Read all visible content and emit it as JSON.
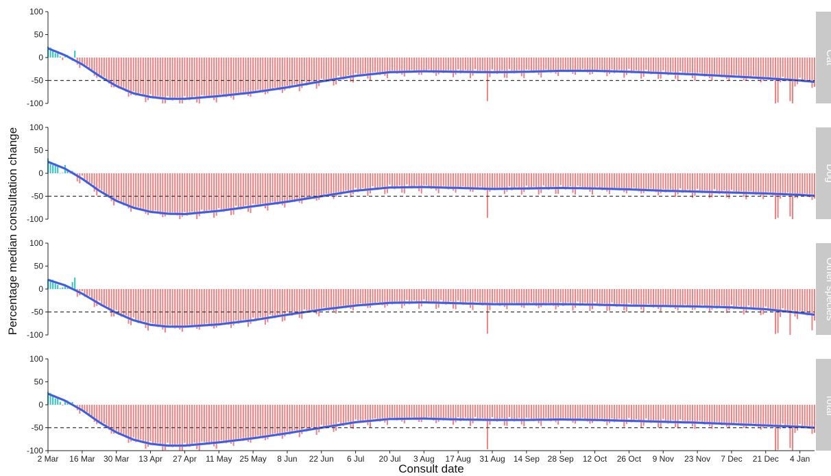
{
  "chart_data": {
    "type": "bar",
    "xlabel": "Consult date",
    "ylabel": "Percentage median consultation change",
    "ylim": [
      -100,
      100
    ],
    "yticks": [
      100,
      50,
      0,
      -50,
      -100
    ],
    "reference_line": -50,
    "date_range": [
      "2020-03-02",
      "2021-01-10"
    ],
    "x_ticks": [
      {
        "date": "2020-03-02",
        "label": "2 Mar"
      },
      {
        "date": "2020-03-16",
        "label": "16 Mar"
      },
      {
        "date": "2020-03-30",
        "label": "30 Mar"
      },
      {
        "date": "2020-04-13",
        "label": "13 Apr"
      },
      {
        "date": "2020-04-27",
        "label": "27 Apr"
      },
      {
        "date": "2020-05-11",
        "label": "11 May"
      },
      {
        "date": "2020-05-25",
        "label": "25 May"
      },
      {
        "date": "2020-06-08",
        "label": "8 Jun"
      },
      {
        "date": "2020-06-22",
        "label": "22 Jun"
      },
      {
        "date": "2020-07-06",
        "label": "6 Jul"
      },
      {
        "date": "2020-07-20",
        "label": "20 Jul"
      },
      {
        "date": "2020-08-03",
        "label": "3 Aug"
      },
      {
        "date": "2020-08-17",
        "label": "17 Aug"
      },
      {
        "date": "2020-08-31",
        "label": "31 Aug"
      },
      {
        "date": "2020-09-14",
        "label": "14 Sep"
      },
      {
        "date": "2020-09-28",
        "label": "28 Sep"
      },
      {
        "date": "2020-10-12",
        "label": "12 Oct"
      },
      {
        "date": "2020-10-26",
        "label": "26 Oct"
      },
      {
        "date": "2020-11-09",
        "label": "9 Nov"
      },
      {
        "date": "2020-11-23",
        "label": "23 Nov"
      },
      {
        "date": "2020-12-07",
        "label": "7 Dec"
      },
      {
        "date": "2020-12-21",
        "label": "21 Dec"
      },
      {
        "date": "2021-01-04",
        "label": "4 Jan"
      }
    ],
    "colors": {
      "positive_bar": "#2ec4c4",
      "negative_bar": "#f08080",
      "trend_line": "#3b5de7",
      "trend_band": "#c8c8d0",
      "strip_background": "#c9c9c9",
      "reference_line": "#333333"
    },
    "panels": [
      {
        "name": "Cat",
        "trend": [
          {
            "date": "2020-03-02",
            "value": 20
          },
          {
            "date": "2020-03-09",
            "value": 5
          },
          {
            "date": "2020-03-16",
            "value": -15
          },
          {
            "date": "2020-03-23",
            "value": -40
          },
          {
            "date": "2020-03-30",
            "value": -62
          },
          {
            "date": "2020-04-06",
            "value": -78
          },
          {
            "date": "2020-04-13",
            "value": -86
          },
          {
            "date": "2020-04-20",
            "value": -90
          },
          {
            "date": "2020-04-27",
            "value": -90
          },
          {
            "date": "2020-05-11",
            "value": -84
          },
          {
            "date": "2020-05-25",
            "value": -76
          },
          {
            "date": "2020-06-08",
            "value": -65
          },
          {
            "date": "2020-06-22",
            "value": -52
          },
          {
            "date": "2020-07-06",
            "value": -40
          },
          {
            "date": "2020-07-20",
            "value": -32
          },
          {
            "date": "2020-08-03",
            "value": -30
          },
          {
            "date": "2020-08-17",
            "value": -31
          },
          {
            "date": "2020-08-31",
            "value": -32
          },
          {
            "date": "2020-09-14",
            "value": -31
          },
          {
            "date": "2020-09-28",
            "value": -29
          },
          {
            "date": "2020-10-12",
            "value": -29
          },
          {
            "date": "2020-10-26",
            "value": -31
          },
          {
            "date": "2020-11-09",
            "value": -34
          },
          {
            "date": "2020-11-23",
            "value": -37
          },
          {
            "date": "2020-12-07",
            "value": -41
          },
          {
            "date": "2020-12-21",
            "value": -45
          },
          {
            "date": "2021-01-04",
            "value": -50
          },
          {
            "date": "2021-01-10",
            "value": -53
          }
        ],
        "spikes": [
          {
            "date": "2020-03-13",
            "value": 15
          },
          {
            "date": "2020-08-29",
            "value": -95
          },
          {
            "date": "2020-12-25",
            "value": -100
          },
          {
            "date": "2020-12-26",
            "value": -98
          },
          {
            "date": "2020-12-31",
            "value": -95
          },
          {
            "date": "2021-01-01",
            "value": -100
          }
        ]
      },
      {
        "name": "Dog",
        "trend": [
          {
            "date": "2020-03-02",
            "value": 25
          },
          {
            "date": "2020-03-09",
            "value": 10
          },
          {
            "date": "2020-03-16",
            "value": -12
          },
          {
            "date": "2020-03-23",
            "value": -38
          },
          {
            "date": "2020-03-30",
            "value": -60
          },
          {
            "date": "2020-04-06",
            "value": -75
          },
          {
            "date": "2020-04-13",
            "value": -84
          },
          {
            "date": "2020-04-20",
            "value": -88
          },
          {
            "date": "2020-04-27",
            "value": -89
          },
          {
            "date": "2020-05-11",
            "value": -82
          },
          {
            "date": "2020-05-25",
            "value": -72
          },
          {
            "date": "2020-06-08",
            "value": -62
          },
          {
            "date": "2020-06-22",
            "value": -50
          },
          {
            "date": "2020-07-06",
            "value": -38
          },
          {
            "date": "2020-07-20",
            "value": -31
          },
          {
            "date": "2020-08-03",
            "value": -30
          },
          {
            "date": "2020-08-17",
            "value": -32
          },
          {
            "date": "2020-08-31",
            "value": -34
          },
          {
            "date": "2020-09-14",
            "value": -33
          },
          {
            "date": "2020-09-28",
            "value": -32
          },
          {
            "date": "2020-10-12",
            "value": -33
          },
          {
            "date": "2020-10-26",
            "value": -35
          },
          {
            "date": "2020-11-09",
            "value": -38
          },
          {
            "date": "2020-11-23",
            "value": -40
          },
          {
            "date": "2020-12-07",
            "value": -42
          },
          {
            "date": "2020-12-21",
            "value": -44
          },
          {
            "date": "2021-01-04",
            "value": -47
          },
          {
            "date": "2021-01-10",
            "value": -49
          }
        ],
        "spikes": [
          {
            "date": "2020-03-12",
            "value": 5
          },
          {
            "date": "2020-08-29",
            "value": -97
          },
          {
            "date": "2020-12-25",
            "value": -100
          },
          {
            "date": "2020-12-26",
            "value": -97
          },
          {
            "date": "2020-12-31",
            "value": -94
          },
          {
            "date": "2021-01-01",
            "value": -100
          }
        ]
      },
      {
        "name": "Other species",
        "trend": [
          {
            "date": "2020-03-02",
            "value": 20
          },
          {
            "date": "2020-03-09",
            "value": 8
          },
          {
            "date": "2020-03-16",
            "value": -10
          },
          {
            "date": "2020-03-23",
            "value": -32
          },
          {
            "date": "2020-03-30",
            "value": -52
          },
          {
            "date": "2020-04-06",
            "value": -68
          },
          {
            "date": "2020-04-13",
            "value": -78
          },
          {
            "date": "2020-04-20",
            "value": -82
          },
          {
            "date": "2020-04-27",
            "value": -82
          },
          {
            "date": "2020-05-11",
            "value": -77
          },
          {
            "date": "2020-05-25",
            "value": -68
          },
          {
            "date": "2020-06-08",
            "value": -56
          },
          {
            "date": "2020-06-22",
            "value": -45
          },
          {
            "date": "2020-07-06",
            "value": -36
          },
          {
            "date": "2020-07-20",
            "value": -30
          },
          {
            "date": "2020-08-03",
            "value": -29
          },
          {
            "date": "2020-08-17",
            "value": -31
          },
          {
            "date": "2020-08-31",
            "value": -33
          },
          {
            "date": "2020-09-14",
            "value": -33
          },
          {
            "date": "2020-09-28",
            "value": -33
          },
          {
            "date": "2020-10-12",
            "value": -34
          },
          {
            "date": "2020-10-26",
            "value": -36
          },
          {
            "date": "2020-11-09",
            "value": -37
          },
          {
            "date": "2020-11-23",
            "value": -38
          },
          {
            "date": "2020-12-07",
            "value": -40
          },
          {
            "date": "2020-12-21",
            "value": -44
          },
          {
            "date": "2021-01-04",
            "value": -52
          },
          {
            "date": "2021-01-10",
            "value": -56
          }
        ],
        "spikes": [
          {
            "date": "2020-03-13",
            "value": 25
          },
          {
            "date": "2020-03-12",
            "value": 15
          },
          {
            "date": "2020-08-29",
            "value": -97
          },
          {
            "date": "2020-12-25",
            "value": -98
          },
          {
            "date": "2020-12-26",
            "value": -96
          },
          {
            "date": "2020-12-31",
            "value": -100
          },
          {
            "date": "2021-01-09",
            "value": -90
          }
        ]
      },
      {
        "name": "Total",
        "trend": [
          {
            "date": "2020-03-02",
            "value": 24
          },
          {
            "date": "2020-03-09",
            "value": 9
          },
          {
            "date": "2020-03-16",
            "value": -12
          },
          {
            "date": "2020-03-23",
            "value": -38
          },
          {
            "date": "2020-03-30",
            "value": -60
          },
          {
            "date": "2020-04-06",
            "value": -76
          },
          {
            "date": "2020-04-13",
            "value": -85
          },
          {
            "date": "2020-04-20",
            "value": -89
          },
          {
            "date": "2020-04-27",
            "value": -89
          },
          {
            "date": "2020-05-11",
            "value": -82
          },
          {
            "date": "2020-05-25",
            "value": -73
          },
          {
            "date": "2020-06-08",
            "value": -62
          },
          {
            "date": "2020-06-22",
            "value": -50
          },
          {
            "date": "2020-07-06",
            "value": -38
          },
          {
            "date": "2020-07-20",
            "value": -31
          },
          {
            "date": "2020-08-03",
            "value": -30
          },
          {
            "date": "2020-08-17",
            "value": -32
          },
          {
            "date": "2020-08-31",
            "value": -33
          },
          {
            "date": "2020-09-14",
            "value": -33
          },
          {
            "date": "2020-09-28",
            "value": -32
          },
          {
            "date": "2020-10-12",
            "value": -33
          },
          {
            "date": "2020-10-26",
            "value": -35
          },
          {
            "date": "2020-11-09",
            "value": -37
          },
          {
            "date": "2020-11-23",
            "value": -39
          },
          {
            "date": "2020-12-07",
            "value": -42
          },
          {
            "date": "2020-12-21",
            "value": -45
          },
          {
            "date": "2021-01-04",
            "value": -48
          },
          {
            "date": "2021-01-10",
            "value": -50
          }
        ],
        "spikes": [
          {
            "date": "2020-03-12",
            "value": 6
          },
          {
            "date": "2020-08-29",
            "value": -97
          },
          {
            "date": "2020-12-25",
            "value": -100
          },
          {
            "date": "2020-12-26",
            "value": -98
          },
          {
            "date": "2020-12-31",
            "value": -94
          },
          {
            "date": "2021-01-01",
            "value": -100
          }
        ]
      }
    ]
  }
}
